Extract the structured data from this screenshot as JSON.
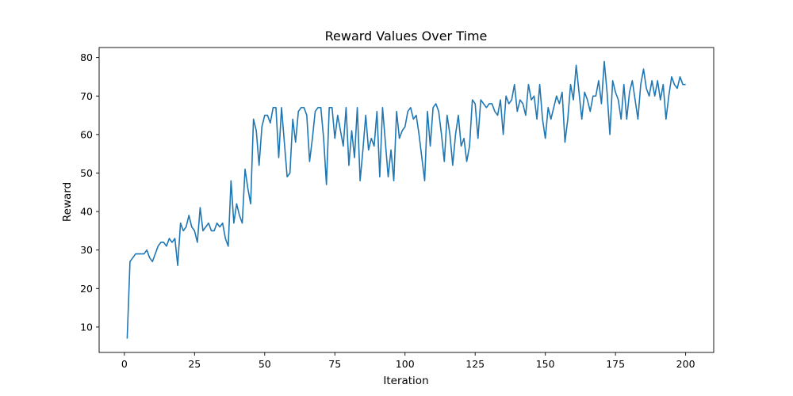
{
  "chart_data": {
    "type": "line",
    "title": "Reward Values Over Time",
    "xlabel": "Iteration",
    "ylabel": "Reward",
    "xlim": [
      -9,
      210
    ],
    "ylim": [
      3.4,
      82.6
    ],
    "xticks": [
      0,
      25,
      50,
      75,
      100,
      125,
      150,
      175,
      200
    ],
    "yticks": [
      10,
      20,
      30,
      40,
      50,
      60,
      70,
      80
    ],
    "grid": false,
    "line_color": "#1f77b4",
    "series": [
      {
        "x": [
          1,
          2,
          3,
          4,
          5,
          6,
          7,
          8,
          9,
          10,
          11,
          12,
          13,
          14,
          15,
          16,
          17,
          18,
          19,
          20,
          21,
          22,
          23,
          24,
          25,
          26,
          27,
          28,
          29,
          30,
          31,
          32,
          33,
          34,
          35,
          36,
          37,
          38,
          39,
          40,
          41,
          42,
          43,
          44,
          45,
          46,
          47,
          48,
          49,
          50,
          51,
          52,
          53,
          54,
          55,
          56,
          57,
          58,
          59,
          60,
          61,
          62,
          63,
          64,
          65,
          66,
          67,
          68,
          69,
          70,
          71,
          72,
          73,
          74,
          75,
          76,
          77,
          78,
          79,
          80,
          81,
          82,
          83,
          84,
          85,
          86,
          87,
          88,
          89,
          90,
          91,
          92,
          93,
          94,
          95,
          96,
          97,
          98,
          99,
          100,
          101,
          102,
          103,
          104,
          105,
          106,
          107,
          108,
          109,
          110,
          111,
          112,
          113,
          114,
          115,
          116,
          117,
          118,
          119,
          120,
          121,
          122,
          123,
          124,
          125,
          126,
          127,
          128,
          129,
          130,
          131,
          132,
          133,
          134,
          135,
          136,
          137,
          138,
          139,
          140,
          141,
          142,
          143,
          144,
          145,
          146,
          147,
          148,
          149,
          150,
          151,
          152,
          153,
          154,
          155,
          156,
          157,
          158,
          159,
          160,
          161,
          162,
          163,
          164,
          165,
          166,
          167,
          168,
          169,
          170,
          171,
          172,
          173,
          174,
          175,
          176,
          177,
          178,
          179,
          180,
          181,
          182,
          183,
          184,
          185,
          186,
          187,
          188,
          189,
          190,
          191,
          192,
          193,
          194,
          195,
          196,
          197,
          198,
          199,
          200
        ],
        "values": [
          7,
          27,
          28,
          29,
          29,
          29,
          29,
          30,
          28,
          27,
          29,
          31,
          32,
          32,
          31,
          33,
          32,
          33,
          26,
          37,
          35,
          36,
          39,
          36,
          35,
          32,
          41,
          35,
          36,
          37,
          35,
          35,
          37,
          36,
          37,
          33,
          31,
          48,
          37,
          42,
          39,
          37,
          51,
          46,
          42,
          64,
          61,
          52,
          62,
          65,
          65,
          63,
          67,
          67,
          54,
          67,
          58,
          49,
          50,
          64,
          58,
          66,
          67,
          67,
          65,
          53,
          59,
          66,
          67,
          67,
          59,
          47,
          67,
          67,
          59,
          65,
          61,
          57,
          67,
          52,
          61,
          54,
          67,
          48,
          56,
          65,
          56,
          59,
          57,
          66,
          49,
          67,
          58,
          49,
          56,
          48,
          66,
          59,
          61,
          62,
          66,
          67,
          64,
          65,
          60,
          54,
          48,
          66,
          57,
          67,
          68,
          66,
          60,
          53,
          65,
          60,
          52,
          60,
          65,
          57,
          59,
          53,
          57,
          69,
          68,
          59,
          69,
          68,
          67,
          68,
          68,
          66,
          65,
          69,
          60,
          70,
          68,
          69,
          73,
          66,
          69,
          68,
          65,
          73,
          69,
          70,
          64,
          73,
          64,
          59,
          67,
          64,
          67,
          70,
          68,
          71,
          58,
          64,
          73,
          69,
          78,
          71,
          64,
          71,
          69,
          66,
          70,
          70,
          74,
          68,
          79,
          71,
          60,
          74,
          71,
          69,
          64,
          73,
          64,
          71,
          74,
          69,
          64,
          73,
          77,
          72,
          70,
          74,
          70,
          74,
          69,
          73,
          64,
          70,
          75,
          73,
          72,
          75,
          73,
          73
        ]
      }
    ]
  }
}
